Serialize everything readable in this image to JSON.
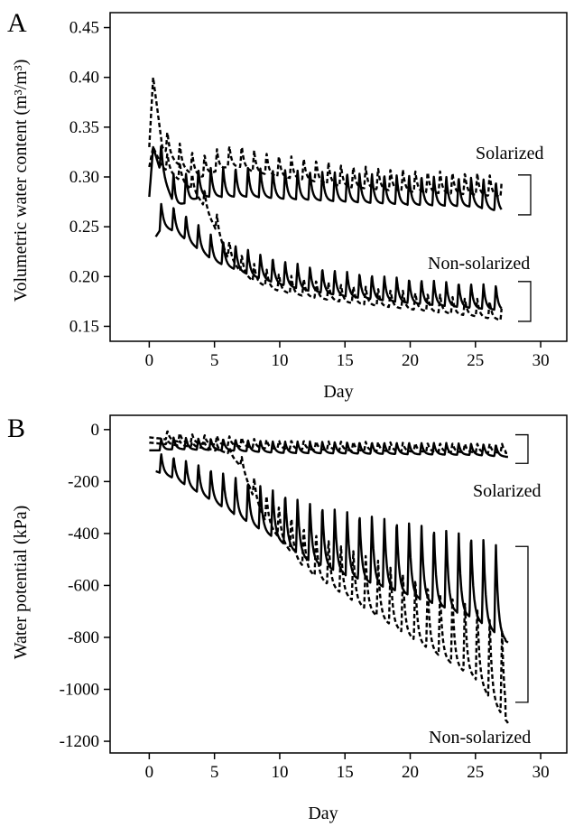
{
  "chart_data": [
    {
      "type": "line",
      "panel_label": "A",
      "title": "",
      "xlabel": "Day",
      "ylabel": "Volumetric water content (m³/m³)",
      "xlim": [
        -3,
        32
      ],
      "ylim": [
        0.135,
        0.465
      ],
      "xticks": [
        0,
        5,
        10,
        15,
        20,
        25,
        30
      ],
      "yticks": [
        0.15,
        0.2,
        0.25,
        0.3,
        0.35,
        0.4,
        0.45
      ],
      "ytick_labels": [
        "0.15",
        "0.20",
        "0.25",
        "0.30",
        "0.35",
        "0.40",
        "0.45"
      ],
      "grid": false,
      "legend": "none",
      "annotations": [
        {
          "text": "Solarized",
          "group": "solarized"
        },
        {
          "text": "Non-solarized",
          "group": "non-solarized"
        }
      ],
      "brackets": [
        {
          "group": "solarized",
          "y_range": [
            0.262,
            0.302
          ]
        },
        {
          "group": "non-solarized",
          "y_range": [
            0.155,
            0.195
          ]
        }
      ],
      "series": [
        {
          "group": "solarized",
          "style": "solid",
          "x": [
            0,
            0.3,
            1,
            2,
            3,
            4,
            5,
            6,
            8,
            10,
            12,
            15,
            20,
            25,
            27
          ],
          "y": [
            0.28,
            0.33,
            0.3,
            0.27,
            0.275,
            0.28,
            0.28,
            0.28,
            0.28,
            0.278,
            0.277,
            0.275,
            0.272,
            0.27,
            0.265
          ]
        },
        {
          "group": "solarized",
          "style": "dashed",
          "x": [
            0,
            0.3,
            0.7,
            1,
            2,
            3,
            4,
            5,
            6,
            7,
            8,
            10,
            12,
            15,
            20,
            25,
            27
          ],
          "y": [
            0.33,
            0.4,
            0.36,
            0.33,
            0.315,
            0.305,
            0.3,
            0.305,
            0.31,
            0.31,
            0.305,
            0.3,
            0.297,
            0.29,
            0.285,
            0.282,
            0.28
          ]
        },
        {
          "group": "non-solarized",
          "style": "solid",
          "x": [
            0.5,
            1,
            2,
            3,
            4,
            5,
            6,
            8,
            10,
            12,
            15,
            20,
            25,
            27
          ],
          "y": [
            0.24,
            0.25,
            0.245,
            0.235,
            0.225,
            0.215,
            0.21,
            0.2,
            0.192,
            0.186,
            0.18,
            0.173,
            0.168,
            0.166
          ]
        },
        {
          "group": "non-solarized",
          "style": "dashed",
          "x": [
            0,
            0.3,
            1,
            2,
            3,
            4,
            5,
            6,
            7,
            8,
            10,
            12,
            15,
            20,
            25,
            27
          ],
          "y": [
            0.31,
            0.33,
            0.31,
            0.3,
            0.29,
            0.275,
            0.25,
            0.22,
            0.205,
            0.195,
            0.185,
            0.18,
            0.174,
            0.167,
            0.16,
            0.156
          ]
        }
      ],
      "peaks": {
        "interval_days": 0.95,
        "start_day": 0.8,
        "end_day": 26.8,
        "sol_solid": 0.03,
        "sol_dashed": 0.022,
        "non_solid": 0.025,
        "non_dashed": 0.018
      }
    },
    {
      "type": "line",
      "panel_label": "B",
      "title": "",
      "xlabel": "Day",
      "ylabel": "Water potential (kPa)",
      "xlim": [
        -3,
        32
      ],
      "ylim": [
        -1245,
        55
      ],
      "xticks": [
        0,
        5,
        10,
        15,
        20,
        25,
        30
      ],
      "yticks": [
        0,
        -200,
        -400,
        -600,
        -800,
        -1000,
        -1200
      ],
      "ytick_labels": [
        "0",
        "-200",
        "-400",
        "-600",
        "-800",
        "-1000",
        "-1200"
      ],
      "grid": false,
      "legend": "none",
      "annotations": [
        {
          "text": "Solarized",
          "group": "solarized"
        },
        {
          "text": "Non-solarized",
          "group": "non-solarized"
        }
      ],
      "brackets": [
        {
          "group": "solarized",
          "y_range": [
            -130,
            -20
          ]
        },
        {
          "group": "non-solarized",
          "y_range": [
            -1050,
            -450
          ]
        }
      ],
      "series": [
        {
          "group": "solarized",
          "style": "solid",
          "x": [
            0,
            1,
            2,
            4,
            6,
            8,
            10,
            15,
            20,
            25,
            27.5
          ],
          "y": [
            -80,
            -80,
            -75,
            -78,
            -80,
            -85,
            -90,
            -92,
            -95,
            -98,
            -105
          ]
        },
        {
          "group": "solarized",
          "style": "dashed",
          "x": [
            0,
            1,
            2,
            4,
            6,
            8,
            10,
            15,
            20,
            25,
            27.5
          ],
          "y": [
            -30,
            -35,
            -45,
            -55,
            -60,
            -70,
            -75,
            -80,
            -85,
            -88,
            -90
          ]
        },
        {
          "group": "non-solarized",
          "style": "solid",
          "x": [
            0.5,
            2,
            4,
            6,
            8,
            10,
            12,
            15,
            20,
            25,
            27.5
          ],
          "y": [
            -160,
            -190,
            -250,
            -310,
            -370,
            -430,
            -500,
            -560,
            -640,
            -730,
            -820
          ]
        },
        {
          "group": "non-solarized",
          "style": "dashed",
          "x": [
            0,
            2,
            4,
            6,
            7,
            8,
            9,
            10,
            12,
            15,
            20,
            25,
            27.5
          ],
          "y": [
            -50,
            -60,
            -70,
            -90,
            -140,
            -260,
            -360,
            -420,
            -540,
            -640,
            -800,
            -960,
            -1130
          ]
        }
      ],
      "peaks": {
        "interval_days": 0.95,
        "start_day": 0.8,
        "end_day": 26.8,
        "sol_solid": 45,
        "sol_dashed": 35,
        "non_solid_factor": 0.45,
        "non_dashed_factor": 0.3
      }
    }
  ]
}
